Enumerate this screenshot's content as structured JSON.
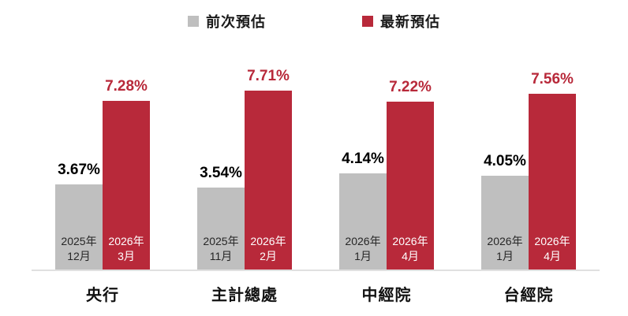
{
  "legend": {
    "items": [
      {
        "label": "前次預估",
        "color": "#BFBFBF"
      },
      {
        "label": "最新預估",
        "color": "#B8293A"
      }
    ]
  },
  "chart_data": {
    "type": "bar",
    "title": "",
    "categories": [
      "央行",
      "主計總處",
      "中經院",
      "台經院"
    ],
    "series": [
      {
        "name": "前次預估",
        "color": "#BFBFBF",
        "values": [
          3.67,
          3.54,
          4.14,
          4.05
        ],
        "value_labels": [
          "3.67%",
          "3.54%",
          "4.14%",
          "4.05%"
        ],
        "value_label_color": "#000000",
        "bar_labels": [
          [
            "2025年",
            "12月"
          ],
          [
            "2025年",
            "11月"
          ],
          [
            "2026年",
            "1月"
          ],
          [
            "2026年",
            "1月"
          ]
        ],
        "bar_label_color": "#262626"
      },
      {
        "name": "最新預估",
        "color": "#B8293A",
        "values": [
          7.28,
          7.71,
          7.22,
          7.56
        ],
        "value_labels": [
          "7.28%",
          "7.71%",
          "7.22%",
          "7.56%"
        ],
        "value_label_color": "#B8293A",
        "bar_labels": [
          [
            "2026年",
            "3月"
          ],
          [
            "2026年",
            "2月"
          ],
          [
            "2026年",
            "4月"
          ],
          [
            "2026年",
            "4月"
          ]
        ],
        "bar_label_color": "#FFFFFF"
      }
    ],
    "ylim": [
      0,
      8
    ],
    "grid": false,
    "legend_position": "top",
    "axis_line_color": "#E0E0E0"
  }
}
